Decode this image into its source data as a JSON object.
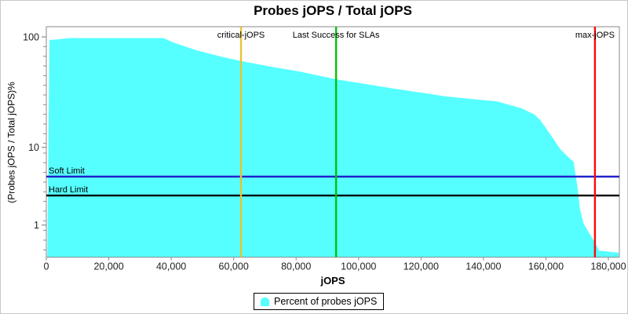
{
  "title": "Probes jOPS / Total jOPS",
  "legend": {
    "label": "Percent of probes jOPS",
    "marker_color": "#55FFFF"
  },
  "chart_data": {
    "type": "area",
    "title": "Probes jOPS / Total jOPS",
    "xlabel": "jOPS",
    "ylabel": "(Probes jOPS / Total jOPS)%",
    "x_axis": {
      "min": 0,
      "max": 180000,
      "tick_step": 20000,
      "tick_labels": [
        "0",
        "20,000",
        "40,000",
        "60,000",
        "80,000",
        "100,000",
        "120,000",
        "140,000",
        "160,000",
        "180,000"
      ]
    },
    "y_axis": {
      "scale": "log",
      "major_ticks": [
        100,
        10,
        1
      ],
      "range_bottom_percent": 0.39,
      "grid": false
    },
    "series": [
      {
        "name": "Percent of probes jOPS",
        "color": "#55FFFF",
        "points": [
          [
            300,
            0.4
          ],
          [
            1000,
            93.5
          ],
          [
            7500,
            97.6
          ],
          [
            37500,
            97.6
          ],
          [
            40700,
            88.7
          ],
          [
            48300,
            75.3
          ],
          [
            56600,
            65.7
          ],
          [
            62350,
            60.5
          ],
          [
            73400,
            52.8
          ],
          [
            81000,
            48.7
          ],
          [
            92800,
            41.3
          ],
          [
            100000,
            38.3
          ],
          [
            111100,
            34.1
          ],
          [
            128000,
            28.9
          ],
          [
            144500,
            26.0
          ],
          [
            152100,
            22.6
          ],
          [
            156400,
            19.8
          ],
          [
            158100,
            17.7
          ],
          [
            159600,
            15.5
          ],
          [
            161400,
            13.1
          ],
          [
            163100,
            11.1
          ],
          [
            164700,
            9.4
          ],
          [
            166400,
            8.0
          ],
          [
            168900,
            6.5
          ],
          [
            170200,
            2.9
          ],
          [
            170900,
            1.6
          ],
          [
            172000,
            1.06
          ],
          [
            174000,
            0.77
          ],
          [
            175700,
            0.6
          ],
          [
            177000,
            0.47
          ],
          [
            183300,
            0.44
          ]
        ]
      }
    ],
    "vertical_markers": [
      {
        "label": "critical-jOPS",
        "x": 62350,
        "color": "#E9C231"
      },
      {
        "label": "Last Success for SLAs",
        "x": 92800,
        "color": "#00C400"
      },
      {
        "label": "max-jOPS",
        "x": 175700,
        "color": "#FA0A0A"
      }
    ],
    "horizontal_markers": [
      {
        "label": "Soft Limit",
        "y_percent": 4.2,
        "color": "#2222CC"
      },
      {
        "label": "Hard Limit",
        "y_percent": 2.4,
        "color": "#000000"
      }
    ],
    "legend_position": "bottom-center",
    "colors": {
      "axis": "#8a8a8a",
      "tick_text": "#222222",
      "annotation_text": "#000000"
    }
  }
}
